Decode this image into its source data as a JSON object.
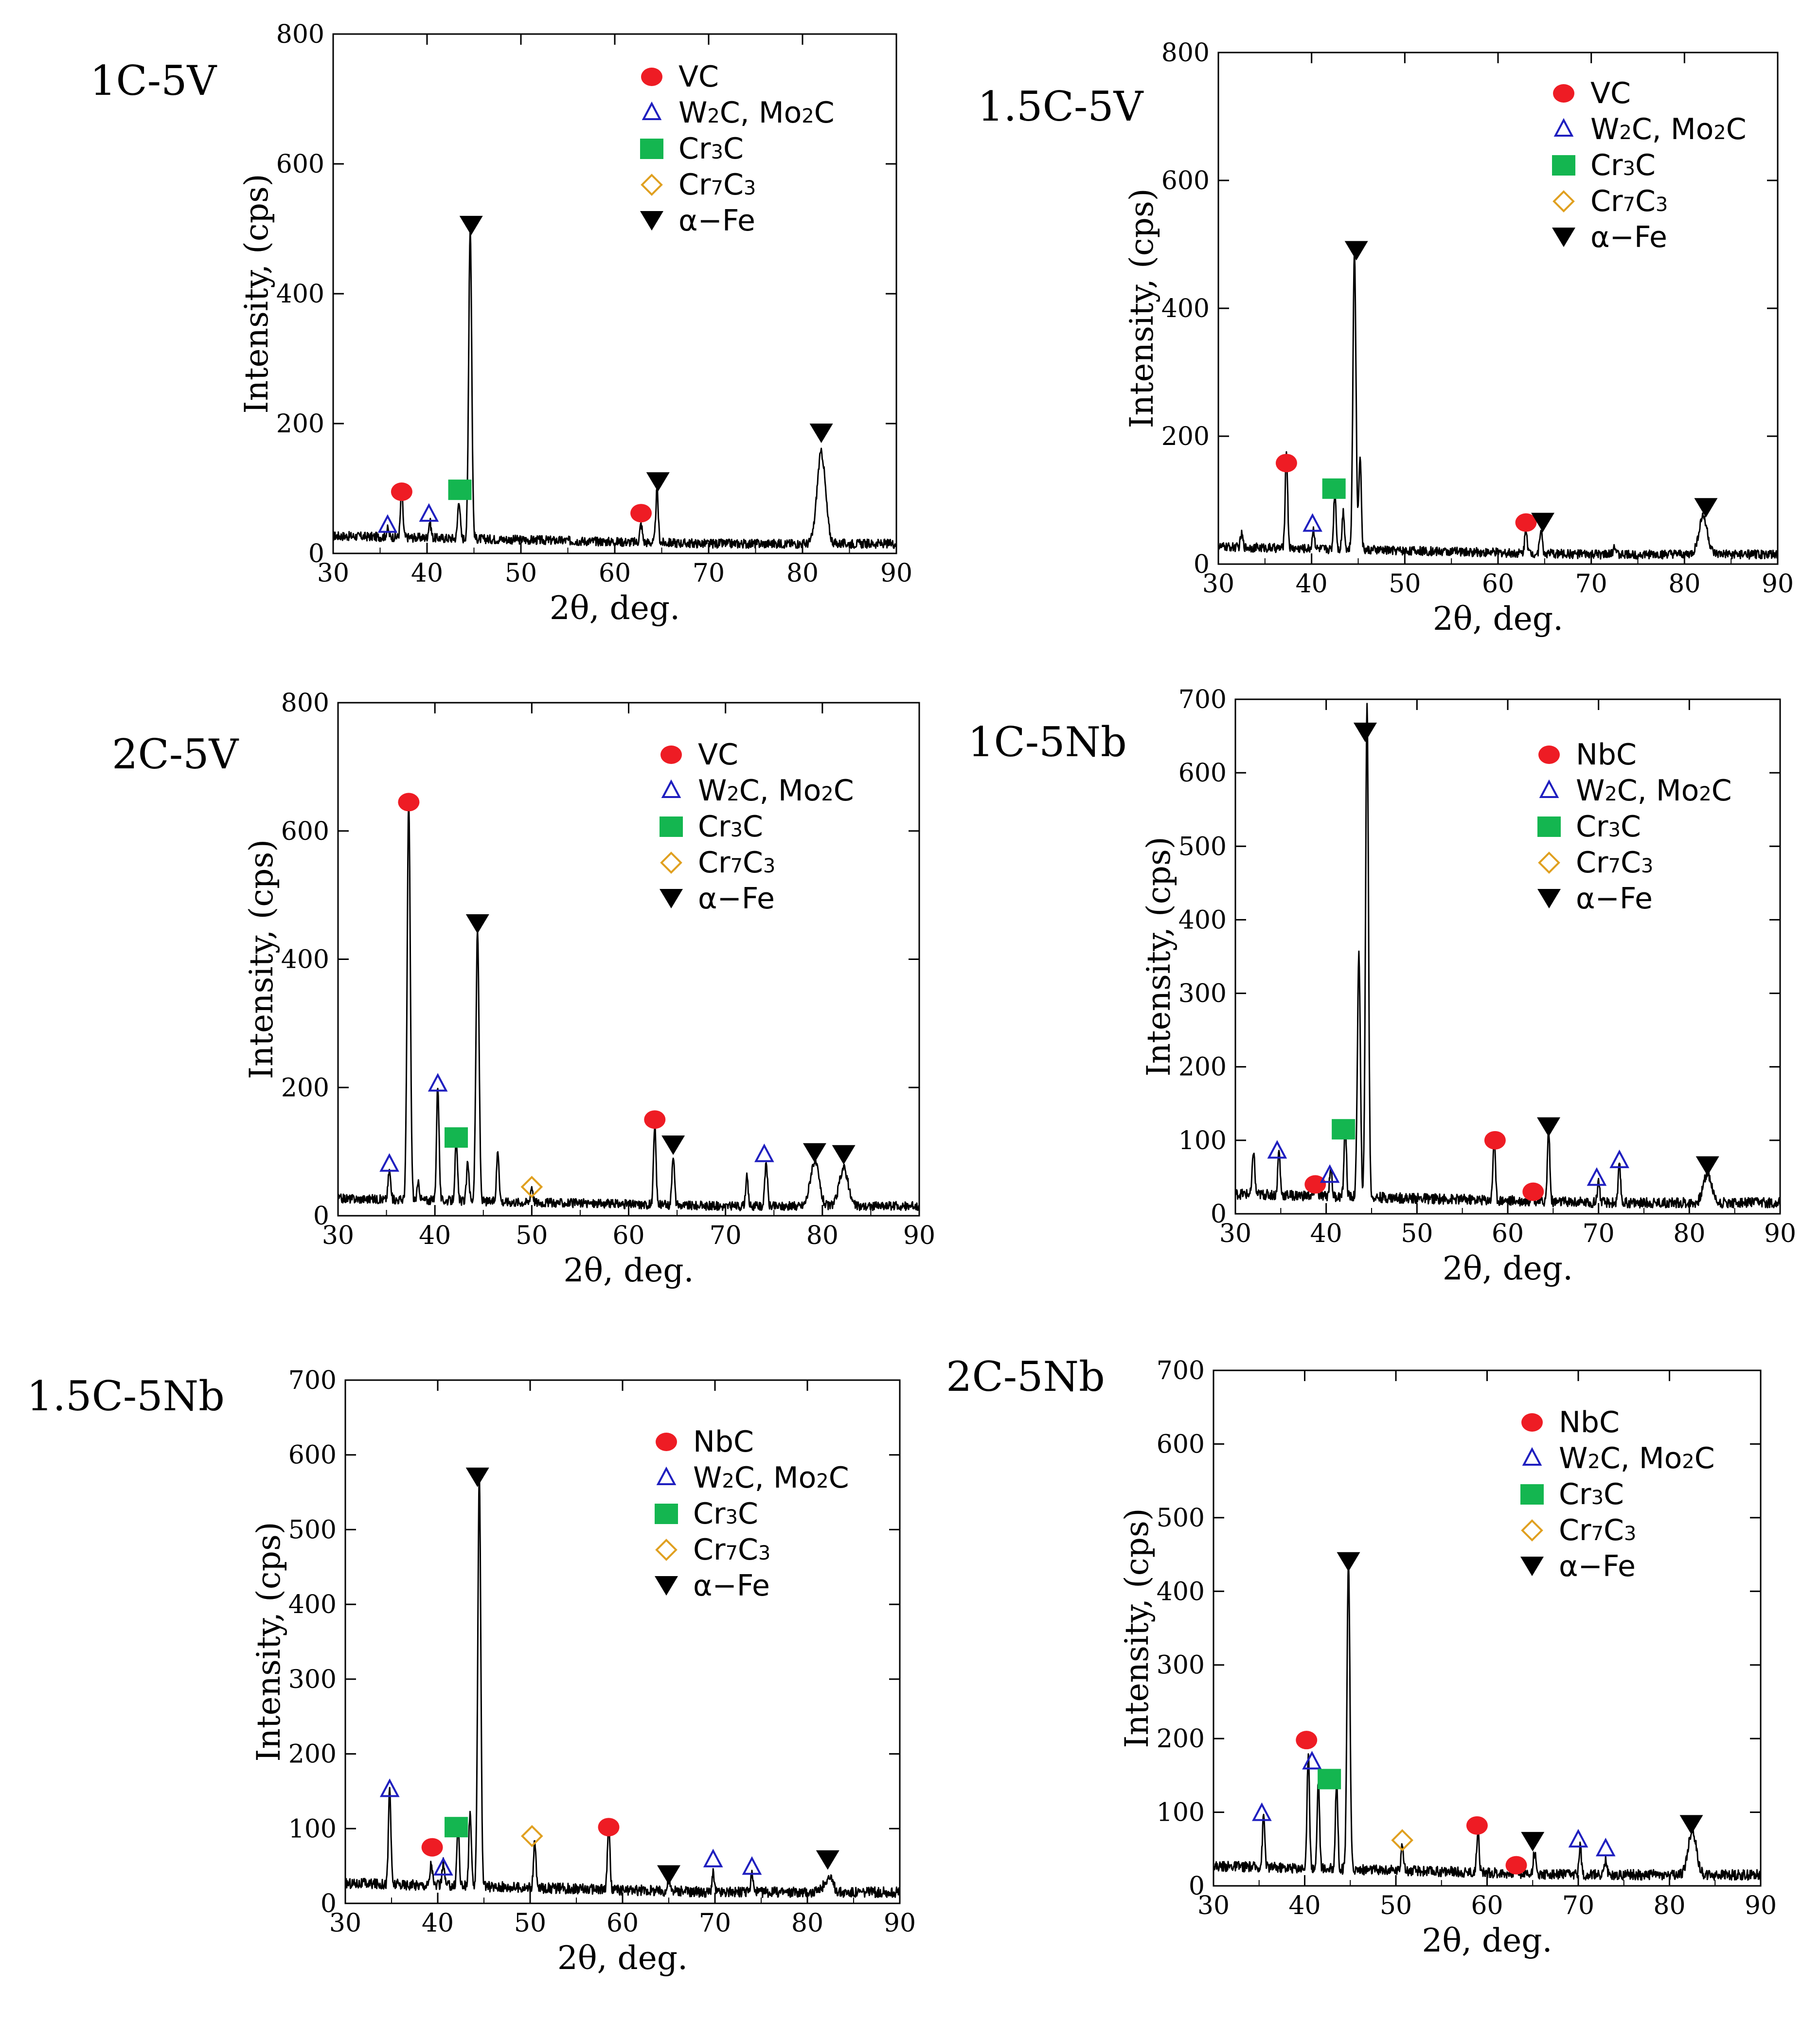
{
  "figure": {
    "x_axis_label": "2θ, deg.",
    "y_axis_label": "Intensity,  (cps)"
  },
  "colors": {
    "carbide": "#ee1c24",
    "w2c": "#1f1fbf",
    "cr3c": "#14b650",
    "cr7c3": "#e0a020",
    "alpha_fe": "#000000",
    "trace": "#000000"
  },
  "chart_data": [
    {
      "id": "1C-5V",
      "type": "line",
      "title": "1C-5V",
      "xlabel": "2θ, deg.",
      "ylabel": "Intensity,  (cps)",
      "xlim": [
        30,
        90
      ],
      "ylim": [
        0,
        800
      ],
      "xticks": [
        30,
        40,
        50,
        60,
        70,
        80,
        90
      ],
      "yticks": [
        0,
        200,
        400,
        600,
        800
      ],
      "legend": [
        {
          "key": "carbide",
          "label": "VC",
          "base": "VC",
          "sub1": "",
          "mid": "",
          "sub2": "",
          "tail": ""
        },
        {
          "key": "w2c",
          "label": "W2C, Mo2C",
          "base": "W",
          "sub1": "2",
          "mid": "C, Mo",
          "sub2": "2",
          "tail": "C"
        },
        {
          "key": "cr3c",
          "label": "Cr3C",
          "base": "Cr",
          "sub1": "3",
          "mid": "C",
          "sub2": "",
          "tail": ""
        },
        {
          "key": "cr7c3",
          "label": "Cr7C3",
          "base": "Cr",
          "sub1": "7",
          "mid": "C",
          "sub2": "3",
          "tail": ""
        },
        {
          "key": "alpha_fe",
          "label": "α−Fe",
          "base": "α−Fe",
          "sub1": "",
          "mid": "",
          "sub2": "",
          "tail": ""
        }
      ],
      "peaks": [
        {
          "x": 35.8,
          "y": 12
        },
        {
          "x": 37.3,
          "y": 70
        },
        {
          "x": 40.3,
          "y": 25
        },
        {
          "x": 43.4,
          "y": 60
        },
        {
          "x": 44.6,
          "y": 480
        },
        {
          "x": 62.8,
          "y": 28
        },
        {
          "x": 64.5,
          "y": 80
        },
        {
          "x": 82.0,
          "y": 140
        }
      ],
      "markers": [
        {
          "phase": "w2c",
          "x": 35.8,
          "y": 43
        },
        {
          "phase": "carbide",
          "x": 37.3,
          "y": 95
        },
        {
          "phase": "w2c",
          "x": 40.2,
          "y": 60
        },
        {
          "phase": "cr3c",
          "x": 43.5,
          "y": 98
        },
        {
          "phase": "alpha_fe",
          "x": 44.7,
          "y": 505
        },
        {
          "phase": "carbide",
          "x": 62.8,
          "y": 62
        },
        {
          "phase": "alpha_fe",
          "x": 64.6,
          "y": 110
        },
        {
          "phase": "alpha_fe",
          "x": 82.0,
          "y": 185
        }
      ]
    },
    {
      "id": "1.5C-5V",
      "type": "line",
      "title": "1.5C-5V",
      "xlabel": "2θ, deg.",
      "ylabel": "Intensity,  (cps)",
      "xlim": [
        30,
        90
      ],
      "ylim": [
        0,
        800
      ],
      "xticks": [
        30,
        40,
        50,
        60,
        70,
        80,
        90
      ],
      "yticks": [
        0,
        200,
        400,
        600,
        800
      ],
      "legend": [
        {
          "key": "carbide",
          "label": "VC",
          "base": "VC",
          "sub1": "",
          "mid": "",
          "sub2": "",
          "tail": ""
        },
        {
          "key": "w2c",
          "label": "W2C, Mo2C",
          "base": "W",
          "sub1": "2",
          "mid": "C, Mo",
          "sub2": "2",
          "tail": "C"
        },
        {
          "key": "cr3c",
          "label": "Cr3C",
          "base": "Cr",
          "sub1": "3",
          "mid": "C",
          "sub2": "",
          "tail": ""
        },
        {
          "key": "cr7c3",
          "label": "Cr7C3",
          "base": "Cr",
          "sub1": "7",
          "mid": "C",
          "sub2": "3",
          "tail": ""
        },
        {
          "key": "alpha_fe",
          "label": "α−Fe",
          "base": "α−Fe",
          "sub1": "",
          "mid": "",
          "sub2": "",
          "tail": ""
        }
      ],
      "peaks": [
        {
          "x": 32.5,
          "y": 20
        },
        {
          "x": 37.3,
          "y": 150
        },
        {
          "x": 40.2,
          "y": 30
        },
        {
          "x": 42.5,
          "y": 90
        },
        {
          "x": 43.4,
          "y": 60
        },
        {
          "x": 44.6,
          "y": 470
        },
        {
          "x": 45.2,
          "y": 150
        },
        {
          "x": 63.0,
          "y": 40
        },
        {
          "x": 64.6,
          "y": 40
        },
        {
          "x": 72.5,
          "y": 15
        },
        {
          "x": 82.0,
          "y": 60
        }
      ],
      "markers": [
        {
          "phase": "carbide",
          "x": 37.3,
          "y": 158
        },
        {
          "phase": "w2c",
          "x": 40.1,
          "y": 62
        },
        {
          "phase": "cr3c",
          "x": 42.4,
          "y": 118
        },
        {
          "phase": "alpha_fe",
          "x": 44.8,
          "y": 490
        },
        {
          "phase": "carbide",
          "x": 63.0,
          "y": 65
        },
        {
          "phase": "alpha_fe",
          "x": 64.8,
          "y": 65
        },
        {
          "phase": "alpha_fe",
          "x": 82.3,
          "y": 88
        }
      ]
    },
    {
      "id": "2C-5V",
      "type": "line",
      "title": "2C-5V",
      "xlabel": "2θ, deg.",
      "ylabel": "Intensity,  (cps)",
      "xlim": [
        30,
        90
      ],
      "ylim": [
        0,
        800
      ],
      "xticks": [
        30,
        40,
        50,
        60,
        70,
        80,
        90
      ],
      "yticks": [
        0,
        200,
        400,
        600,
        800
      ],
      "legend": [
        {
          "key": "carbide",
          "label": "VC",
          "base": "VC",
          "sub1": "",
          "mid": "",
          "sub2": "",
          "tail": ""
        },
        {
          "key": "w2c",
          "label": "W2C, Mo2C",
          "base": "W",
          "sub1": "2",
          "mid": "C, Mo",
          "sub2": "2",
          "tail": "C"
        },
        {
          "key": "cr3c",
          "label": "Cr3C",
          "base": "Cr",
          "sub1": "3",
          "mid": "C",
          "sub2": "",
          "tail": ""
        },
        {
          "key": "cr7c3",
          "label": "Cr7C3",
          "base": "Cr",
          "sub1": "7",
          "mid": "C",
          "sub2": "3",
          "tail": ""
        },
        {
          "key": "alpha_fe",
          "label": "α−Fe",
          "base": "α−Fe",
          "sub1": "",
          "mid": "",
          "sub2": "",
          "tail": ""
        }
      ],
      "peaks": [
        {
          "x": 35.3,
          "y": 45
        },
        {
          "x": 37.3,
          "y": 620
        },
        {
          "x": 38.3,
          "y": 25
        },
        {
          "x": 40.3,
          "y": 180
        },
        {
          "x": 42.2,
          "y": 90
        },
        {
          "x": 43.4,
          "y": 60
        },
        {
          "x": 44.4,
          "y": 420
        },
        {
          "x": 46.5,
          "y": 80
        },
        {
          "x": 50.0,
          "y": 25
        },
        {
          "x": 62.7,
          "y": 120
        },
        {
          "x": 64.6,
          "y": 80
        },
        {
          "x": 72.2,
          "y": 45
        },
        {
          "x": 74.2,
          "y": 70
        },
        {
          "x": 79.2,
          "y": 70
        },
        {
          "x": 82.2,
          "y": 60
        }
      ],
      "markers": [
        {
          "phase": "w2c",
          "x": 35.3,
          "y": 80
        },
        {
          "phase": "carbide",
          "x": 37.3,
          "y": 645
        },
        {
          "phase": "w2c",
          "x": 40.3,
          "y": 205
        },
        {
          "phase": "cr3c",
          "x": 42.2,
          "y": 122
        },
        {
          "phase": "alpha_fe",
          "x": 44.4,
          "y": 455
        },
        {
          "phase": "cr7c3",
          "x": 50.0,
          "y": 45
        },
        {
          "phase": "carbide",
          "x": 62.7,
          "y": 150
        },
        {
          "phase": "alpha_fe",
          "x": 64.6,
          "y": 110
        },
        {
          "phase": "w2c",
          "x": 74.0,
          "y": 95
        },
        {
          "phase": "alpha_fe",
          "x": 79.2,
          "y": 98
        },
        {
          "phase": "alpha_fe",
          "x": 82.2,
          "y": 95
        }
      ]
    },
    {
      "id": "1C-5Nb",
      "type": "line",
      "title": "1C-5Nb",
      "xlabel": "2θ, deg.",
      "ylabel": "Intensity,  (cps)",
      "xlim": [
        30,
        90
      ],
      "ylim": [
        0,
        700
      ],
      "xticks": [
        30,
        40,
        50,
        60,
        70,
        80,
        90
      ],
      "yticks": [
        0,
        100,
        200,
        300,
        400,
        500,
        600,
        700
      ],
      "legend": [
        {
          "key": "carbide",
          "label": "NbC",
          "base": "NbC",
          "sub1": "",
          "mid": "",
          "sub2": "",
          "tail": ""
        },
        {
          "key": "w2c",
          "label": "W2C, Mo2C",
          "base": "W",
          "sub1": "2",
          "mid": "C, Mo",
          "sub2": "2",
          "tail": "C"
        },
        {
          "key": "cr3c",
          "label": "Cr3C",
          "base": "Cr",
          "sub1": "3",
          "mid": "C",
          "sub2": "",
          "tail": ""
        },
        {
          "key": "cr7c3",
          "label": "Cr7C3",
          "base": "Cr",
          "sub1": "7",
          "mid": "C",
          "sub2": "3",
          "tail": ""
        },
        {
          "key": "alpha_fe",
          "label": "α−Fe",
          "base": "α−Fe",
          "sub1": "",
          "mid": "",
          "sub2": "",
          "tail": ""
        }
      ],
      "peaks": [
        {
          "x": 32.0,
          "y": 60
        },
        {
          "x": 34.8,
          "y": 60
        },
        {
          "x": 38.9,
          "y": 20
        },
        {
          "x": 40.5,
          "y": 40
        },
        {
          "x": 42.1,
          "y": 100
        },
        {
          "x": 43.6,
          "y": 330
        },
        {
          "x": 44.5,
          "y": 670
        },
        {
          "x": 58.5,
          "y": 85
        },
        {
          "x": 62.7,
          "y": 20
        },
        {
          "x": 64.5,
          "y": 100
        },
        {
          "x": 70.0,
          "y": 30
        },
        {
          "x": 72.3,
          "y": 50
        },
        {
          "x": 82.0,
          "y": 40
        }
      ],
      "markers": [
        {
          "phase": "w2c",
          "x": 34.6,
          "y": 85
        },
        {
          "phase": "carbide",
          "x": 38.8,
          "y": 40
        },
        {
          "phase": "w2c",
          "x": 40.4,
          "y": 52
        },
        {
          "phase": "cr3c",
          "x": 41.9,
          "y": 115
        },
        {
          "phase": "alpha_fe",
          "x": 44.3,
          "y": 655
        },
        {
          "phase": "carbide",
          "x": 58.6,
          "y": 100
        },
        {
          "phase": "carbide",
          "x": 62.8,
          "y": 30
        },
        {
          "phase": "alpha_fe",
          "x": 64.5,
          "y": 118
        },
        {
          "phase": "w2c",
          "x": 69.8,
          "y": 48
        },
        {
          "phase": "w2c",
          "x": 72.3,
          "y": 72
        },
        {
          "phase": "alpha_fe",
          "x": 82.0,
          "y": 65
        }
      ]
    },
    {
      "id": "1.5C-5Nb",
      "type": "line",
      "title": "1.5C-5Nb",
      "xlabel": "2θ, deg.",
      "ylabel": "Intensity,  (cps)",
      "xlim": [
        30,
        90
      ],
      "ylim": [
        0,
        700
      ],
      "xticks": [
        30,
        40,
        50,
        60,
        70,
        80,
        90
      ],
      "yticks": [
        0,
        100,
        200,
        300,
        400,
        500,
        600,
        700
      ],
      "legend": [
        {
          "key": "carbide",
          "label": "NbC",
          "base": "NbC",
          "sub1": "",
          "mid": "",
          "sub2": "",
          "tail": ""
        },
        {
          "key": "w2c",
          "label": "W2C, Mo2C",
          "base": "W",
          "sub1": "2",
          "mid": "C, Mo",
          "sub2": "2",
          "tail": "C"
        },
        {
          "key": "cr3c",
          "label": "Cr3C",
          "base": "Cr",
          "sub1": "3",
          "mid": "C",
          "sub2": "",
          "tail": ""
        },
        {
          "key": "cr7c3",
          "label": "Cr7C3",
          "base": "Cr",
          "sub1": "7",
          "mid": "C",
          "sub2": "3",
          "tail": ""
        },
        {
          "key": "alpha_fe",
          "label": "α−Fe",
          "base": "α−Fe",
          "sub1": "",
          "mid": "",
          "sub2": "",
          "tail": ""
        }
      ],
      "peaks": [
        {
          "x": 34.8,
          "y": 130
        },
        {
          "x": 39.3,
          "y": 30
        },
        {
          "x": 40.6,
          "y": 30
        },
        {
          "x": 42.2,
          "y": 80
        },
        {
          "x": 43.5,
          "y": 100
        },
        {
          "x": 44.5,
          "y": 555
        },
        {
          "x": 50.5,
          "y": 60
        },
        {
          "x": 58.5,
          "y": 90
        },
        {
          "x": 65.0,
          "y": 15
        },
        {
          "x": 69.8,
          "y": 25
        },
        {
          "x": 74.0,
          "y": 25
        },
        {
          "x": 82.3,
          "y": 20
        }
      ],
      "markers": [
        {
          "phase": "w2c",
          "x": 34.8,
          "y": 152
        },
        {
          "phase": "carbide",
          "x": 39.4,
          "y": 75
        },
        {
          "phase": "w2c",
          "x": 40.6,
          "y": 47
        },
        {
          "phase": "cr3c",
          "x": 42.0,
          "y": 102
        },
        {
          "phase": "alpha_fe",
          "x": 44.3,
          "y": 570
        },
        {
          "phase": "cr7c3",
          "x": 50.2,
          "y": 90
        },
        {
          "phase": "carbide",
          "x": 58.5,
          "y": 102
        },
        {
          "phase": "alpha_fe",
          "x": 65.0,
          "y": 38
        },
        {
          "phase": "w2c",
          "x": 69.8,
          "y": 58
        },
        {
          "phase": "w2c",
          "x": 74.0,
          "y": 48
        },
        {
          "phase": "alpha_fe",
          "x": 82.2,
          "y": 58
        }
      ]
    },
    {
      "id": "2C-5Nb",
      "type": "line",
      "title": "2C-5Nb",
      "xlabel": "2θ, deg.",
      "ylabel": "Intensity,  (cps)",
      "xlim": [
        30,
        90
      ],
      "ylim": [
        0,
        700
      ],
      "xticks": [
        30,
        40,
        50,
        60,
        70,
        80,
        90
      ],
      "yticks": [
        0,
        100,
        200,
        300,
        400,
        500,
        600,
        700
      ],
      "legend": [
        {
          "key": "carbide",
          "label": "NbC",
          "base": "NbC",
          "sub1": "",
          "mid": "",
          "sub2": "",
          "tail": ""
        },
        {
          "key": "w2c",
          "label": "W2C, Mo2C",
          "base": "W",
          "sub1": "2",
          "mid": "C, Mo",
          "sub2": "2",
          "tail": "C"
        },
        {
          "key": "cr3c",
          "label": "Cr3C",
          "base": "Cr",
          "sub1": "3",
          "mid": "C",
          "sub2": "",
          "tail": ""
        },
        {
          "key": "cr7c3",
          "label": "Cr7C3",
          "base": "Cr",
          "sub1": "7",
          "mid": "C",
          "sub2": "3",
          "tail": ""
        },
        {
          "key": "alpha_fe",
          "label": "α−Fe",
          "base": "α−Fe",
          "sub1": "",
          "mid": "",
          "sub2": "",
          "tail": ""
        }
      ],
      "peaks": [
        {
          "x": 35.5,
          "y": 70
        },
        {
          "x": 40.4,
          "y": 160
        },
        {
          "x": 41.5,
          "y": 120
        },
        {
          "x": 43.5,
          "y": 120
        },
        {
          "x": 44.8,
          "y": 420
        },
        {
          "x": 50.7,
          "y": 40
        },
        {
          "x": 59.0,
          "y": 60
        },
        {
          "x": 63.2,
          "y": 15
        },
        {
          "x": 65.2,
          "y": 30
        },
        {
          "x": 70.2,
          "y": 40
        },
        {
          "x": 73.0,
          "y": 20
        },
        {
          "x": 82.5,
          "y": 60
        }
      ],
      "markers": [
        {
          "phase": "w2c",
          "x": 35.3,
          "y": 98
        },
        {
          "phase": "carbide",
          "x": 40.2,
          "y": 198
        },
        {
          "phase": "w2c",
          "x": 40.8,
          "y": 168
        },
        {
          "phase": "cr3c",
          "x": 42.7,
          "y": 145
        },
        {
          "phase": "alpha_fe",
          "x": 44.8,
          "y": 440
        },
        {
          "phase": "cr7c3",
          "x": 50.7,
          "y": 62
        },
        {
          "phase": "carbide",
          "x": 58.9,
          "y": 82
        },
        {
          "phase": "carbide",
          "x": 63.2,
          "y": 28
        },
        {
          "phase": "alpha_fe",
          "x": 65.0,
          "y": 60
        },
        {
          "phase": "w2c",
          "x": 70.0,
          "y": 62
        },
        {
          "phase": "w2c",
          "x": 73.0,
          "y": 50
        },
        {
          "phase": "alpha_fe",
          "x": 82.4,
          "y": 83
        }
      ]
    }
  ]
}
